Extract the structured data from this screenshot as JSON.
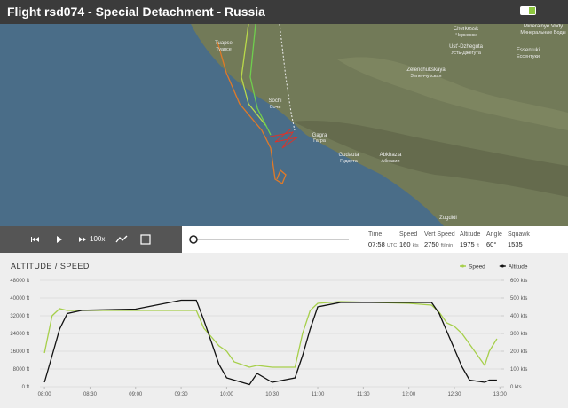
{
  "header": {
    "title": "Flight rsd074 - Special Detachment - Russia"
  },
  "map": {
    "labels": [
      "Cherkessk",
      "Черкесск",
      "Ust'-Dzheguta",
      "Усть-Джегута",
      "Mineralnye Vody",
      "Минеральные Воды",
      "Essentuki",
      "Ессентуки",
      "Zelenchukskaya",
      "Зеленчукская",
      "Tuapse",
      "Туапсе",
      "Sochi",
      "Сочи",
      "Gagra",
      "Гагра",
      "Gudauta",
      "Гудаута",
      "Abkhazia",
      "Абхазия",
      "Zugdidi"
    ]
  },
  "controls": {
    "playback_speed": "100x"
  },
  "stats": [
    {
      "label": "Time",
      "value": "07:58",
      "unit": "UTC"
    },
    {
      "label": "Speed",
      "value": "160",
      "unit": "kts"
    },
    {
      "label": "Vert Speed",
      "value": "2750",
      "unit": "ft/min"
    },
    {
      "label": "Altitude",
      "value": "1975",
      "unit": "ft"
    },
    {
      "label": "Angle",
      "value": "60°"
    },
    {
      "label": "Squawk",
      "value": "1535"
    }
  ],
  "chart_data": {
    "type": "line",
    "title": "ALTITUDE / SPEED",
    "x": [
      "08:00",
      "08:05",
      "08:10",
      "08:15",
      "08:25",
      "09:00",
      "09:30",
      "09:40",
      "09:45",
      "09:50",
      "09:55",
      "10:00",
      "10:05",
      "10:15",
      "10:20",
      "10:30",
      "10:45",
      "10:50",
      "10:55",
      "11:00",
      "11:15",
      "12:00",
      "12:15",
      "12:20",
      "12:25",
      "12:30",
      "12:35",
      "12:40",
      "12:50",
      "12:53",
      "12:58"
    ],
    "xlim": [
      "07:57",
      "13:01"
    ],
    "xticks": [
      "08:00",
      "08:30",
      "09:00",
      "09:30",
      "10:00",
      "10:30",
      "11:00",
      "11:30",
      "12:00",
      "12:30",
      "13:00"
    ],
    "series": [
      {
        "name": "Speed",
        "color": "#a6cf4a",
        "axis": "y2",
        "values": [
          190,
          400,
          440,
          430,
          430,
          430,
          430,
          430,
          330,
          280,
          230,
          200,
          140,
          110,
          120,
          110,
          110,
          300,
          430,
          470,
          480,
          470,
          460,
          420,
          360,
          340,
          300,
          240,
          120,
          200,
          270
        ]
      },
      {
        "name": "Altitude",
        "color": "#111111",
        "values": [
          2000,
          14000,
          26000,
          33000,
          34500,
          35000,
          39000,
          39000,
          30000,
          20000,
          10000,
          4000,
          3000,
          1000,
          6000,
          2000,
          4000,
          14000,
          26000,
          36000,
          38000,
          38000,
          38000,
          33000,
          25000,
          17000,
          9000,
          3000,
          2000,
          3000,
          3000
        ]
      }
    ],
    "ylim": [
      0,
      48000
    ],
    "yticks": [
      {
        "value": 0,
        "label": "0 ft"
      },
      {
        "value": 8000,
        "label": "8000 ft"
      },
      {
        "value": 16000,
        "label": "16000 ft"
      },
      {
        "value": 24000,
        "label": "24000 ft"
      },
      {
        "value": 32000,
        "label": "32000 ft"
      },
      {
        "value": 40000,
        "label": "40000 ft"
      },
      {
        "value": 48000,
        "label": "48000 ft"
      }
    ],
    "y2lim": [
      0,
      600
    ],
    "y2ticks": [
      {
        "value": 0,
        "label": "0 kts"
      },
      {
        "value": 100,
        "label": "100 kts"
      },
      {
        "value": 200,
        "label": "200 kts"
      },
      {
        "value": 300,
        "label": "300 kts"
      },
      {
        "value": 400,
        "label": "400 kts"
      },
      {
        "value": 500,
        "label": "500 kts"
      },
      {
        "value": 600,
        "label": "600 kts"
      }
    ],
    "grid": true
  }
}
